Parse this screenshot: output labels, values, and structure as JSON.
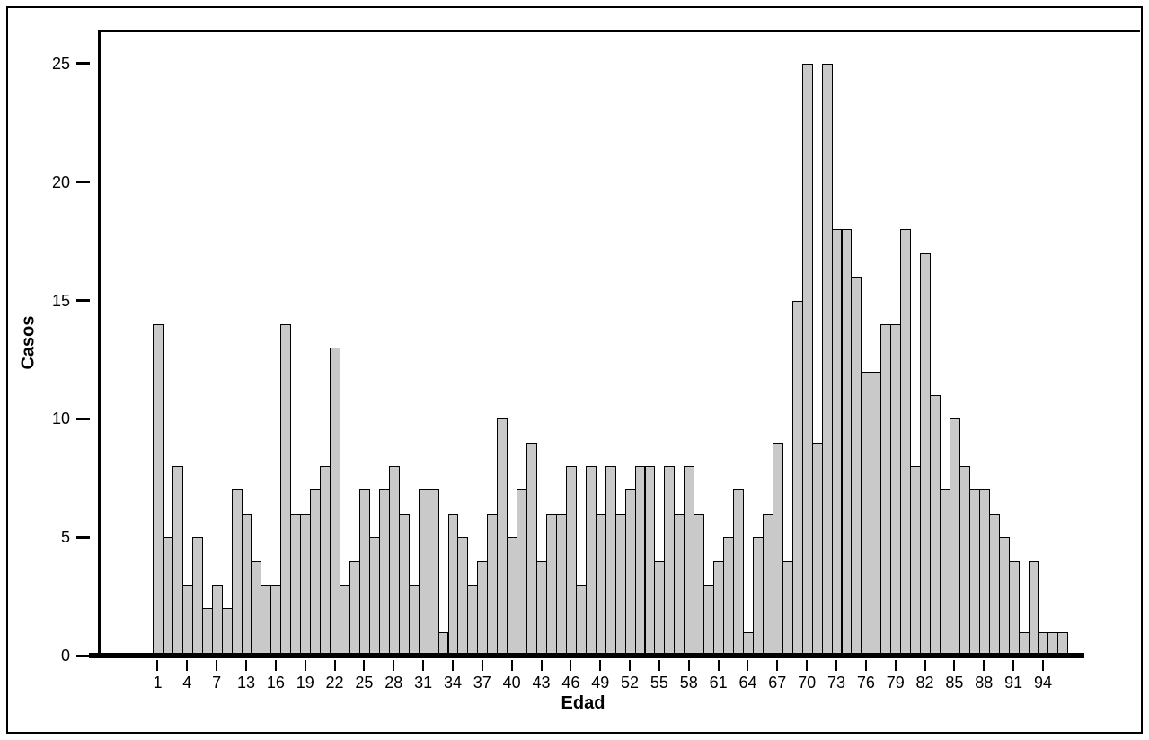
{
  "chart_data": {
    "type": "bar",
    "title": "",
    "xlabel": "Edad",
    "ylabel": "Casos",
    "categories": [
      "1",
      "2",
      "3",
      "4",
      "5",
      "6",
      "7",
      "8",
      "9",
      "13",
      "14",
      "15",
      "16",
      "17",
      "18",
      "19",
      "20",
      "21",
      "22",
      "23",
      "24",
      "25",
      "26",
      "27",
      "28",
      "29",
      "30",
      "31",
      "32",
      "33",
      "34",
      "35",
      "36",
      "37",
      "38",
      "39",
      "40",
      "41",
      "42",
      "43",
      "44",
      "45",
      "46",
      "47",
      "48",
      "49",
      "50",
      "51",
      "52",
      "53",
      "54",
      "55",
      "56",
      "57",
      "58",
      "59",
      "60",
      "61",
      "62",
      "63",
      "64",
      "65",
      "66",
      "67",
      "68",
      "69",
      "70",
      "71",
      "72",
      "73",
      "74",
      "75",
      "76",
      "77",
      "78",
      "79",
      "80",
      "81",
      "82",
      "83",
      "84",
      "85",
      "86",
      "87",
      "88",
      "89",
      "90",
      "91",
      "92",
      "93",
      "94",
      "95",
      "96"
    ],
    "values": [
      14,
      5,
      8,
      3,
      5,
      2,
      3,
      2,
      7,
      6,
      4,
      3,
      3,
      14,
      6,
      6,
      7,
      8,
      13,
      3,
      4,
      7,
      5,
      7,
      8,
      6,
      3,
      7,
      7,
      1,
      6,
      5,
      3,
      4,
      6,
      10,
      5,
      7,
      9,
      4,
      6,
      6,
      8,
      3,
      8,
      6,
      8,
      6,
      7,
      8,
      8,
      4,
      8,
      6,
      8,
      6,
      3,
      4,
      5,
      7,
      1,
      5,
      6,
      9,
      4,
      15,
      25,
      9,
      25,
      18,
      18,
      16,
      12,
      12,
      14,
      14,
      18,
      8,
      17,
      11,
      7,
      10,
      8,
      7,
      7,
      6,
      5,
      4,
      1,
      4,
      1,
      1,
      1
    ],
    "x_tick_labels": [
      "1",
      "4",
      "7",
      "13",
      "16",
      "19",
      "22",
      "25",
      "28",
      "31",
      "34",
      "37",
      "40",
      "43",
      "46",
      "49",
      "52",
      "55",
      "58",
      "61",
      "64",
      "67",
      "70",
      "73",
      "76",
      "79",
      "82",
      "85",
      "88",
      "91",
      "94"
    ],
    "x_tick_every": 3,
    "y_ticks": [
      "0",
      "5",
      "10",
      "15",
      "20",
      "25"
    ],
    "ylim": [
      0,
      26.3
    ],
    "grid": false,
    "legend": false,
    "bar_fill_color": "#c9c9c9",
    "bar_border_color": "#000000",
    "axis_color": "#000000",
    "background_color": "#ffffff"
  }
}
